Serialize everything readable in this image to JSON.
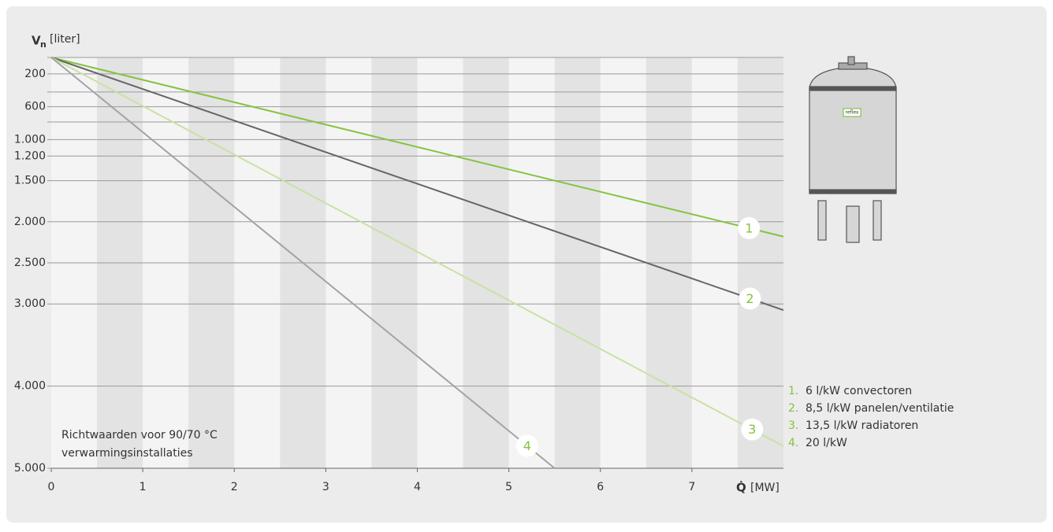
{
  "chart_data": {
    "type": "line",
    "y_label": {
      "symbol": "V",
      "subscript": "n",
      "unit": "[liter]"
    },
    "x_label": {
      "symbol": "Q̇",
      "unit": "[MW]"
    },
    "annotation": [
      "Richtwaarden voor 90/70 °C",
      "verwarmingsinstallaties"
    ],
    "image_text": "reflex",
    "xlim": [
      0,
      8
    ],
    "xticks": [
      0,
      1,
      2,
      3,
      4,
      5,
      6,
      7
    ],
    "ylim": [
      0,
      5000
    ],
    "y_inverted": true,
    "yticks": [
      {
        "value": 0,
        "label": null
      },
      200,
      {
        "value": 420,
        "label": null
      },
      600,
      {
        "value": 785,
        "label": null
      },
      {
        "value": 1000,
        "label": "1.000"
      },
      {
        "value": 1200,
        "label": "1.200"
      },
      {
        "value": 1500,
        "label": "1.500"
      },
      {
        "value": 2000,
        "label": "2.000"
      },
      {
        "value": 2500,
        "label": "2.500"
      },
      {
        "value": 3000,
        "label": "3.000"
      },
      {
        "value": 4000,
        "label": "4.000"
      },
      {
        "value": 5000,
        "label": "5.000"
      }
    ],
    "grid": true,
    "series": [
      {
        "name": "6 l/kW convectoren",
        "label": "1",
        "legend_number": "1.",
        "color": "#86c240",
        "x": [
          0,
          8
        ],
        "values": [
          0,
          2180
        ]
      },
      {
        "name": "8,5 l/kW panelen/ventilatie",
        "label": "2",
        "legend_number": "2.",
        "color": "#666666",
        "x": [
          0,
          8
        ],
        "values": [
          0,
          3075
        ]
      },
      {
        "name": "13,5 l/kW radiatoren",
        "label": "3",
        "legend_number": "3.",
        "color": "#c8e2a3",
        "x": [
          0,
          8
        ],
        "values": [
          0,
          4730
        ]
      },
      {
        "name": "20 l/kW",
        "label": "4",
        "legend_number": "4.",
        "color": "#a3a3a3",
        "x": [
          0,
          5.5
        ],
        "values": [
          0,
          5000
        ]
      }
    ]
  }
}
